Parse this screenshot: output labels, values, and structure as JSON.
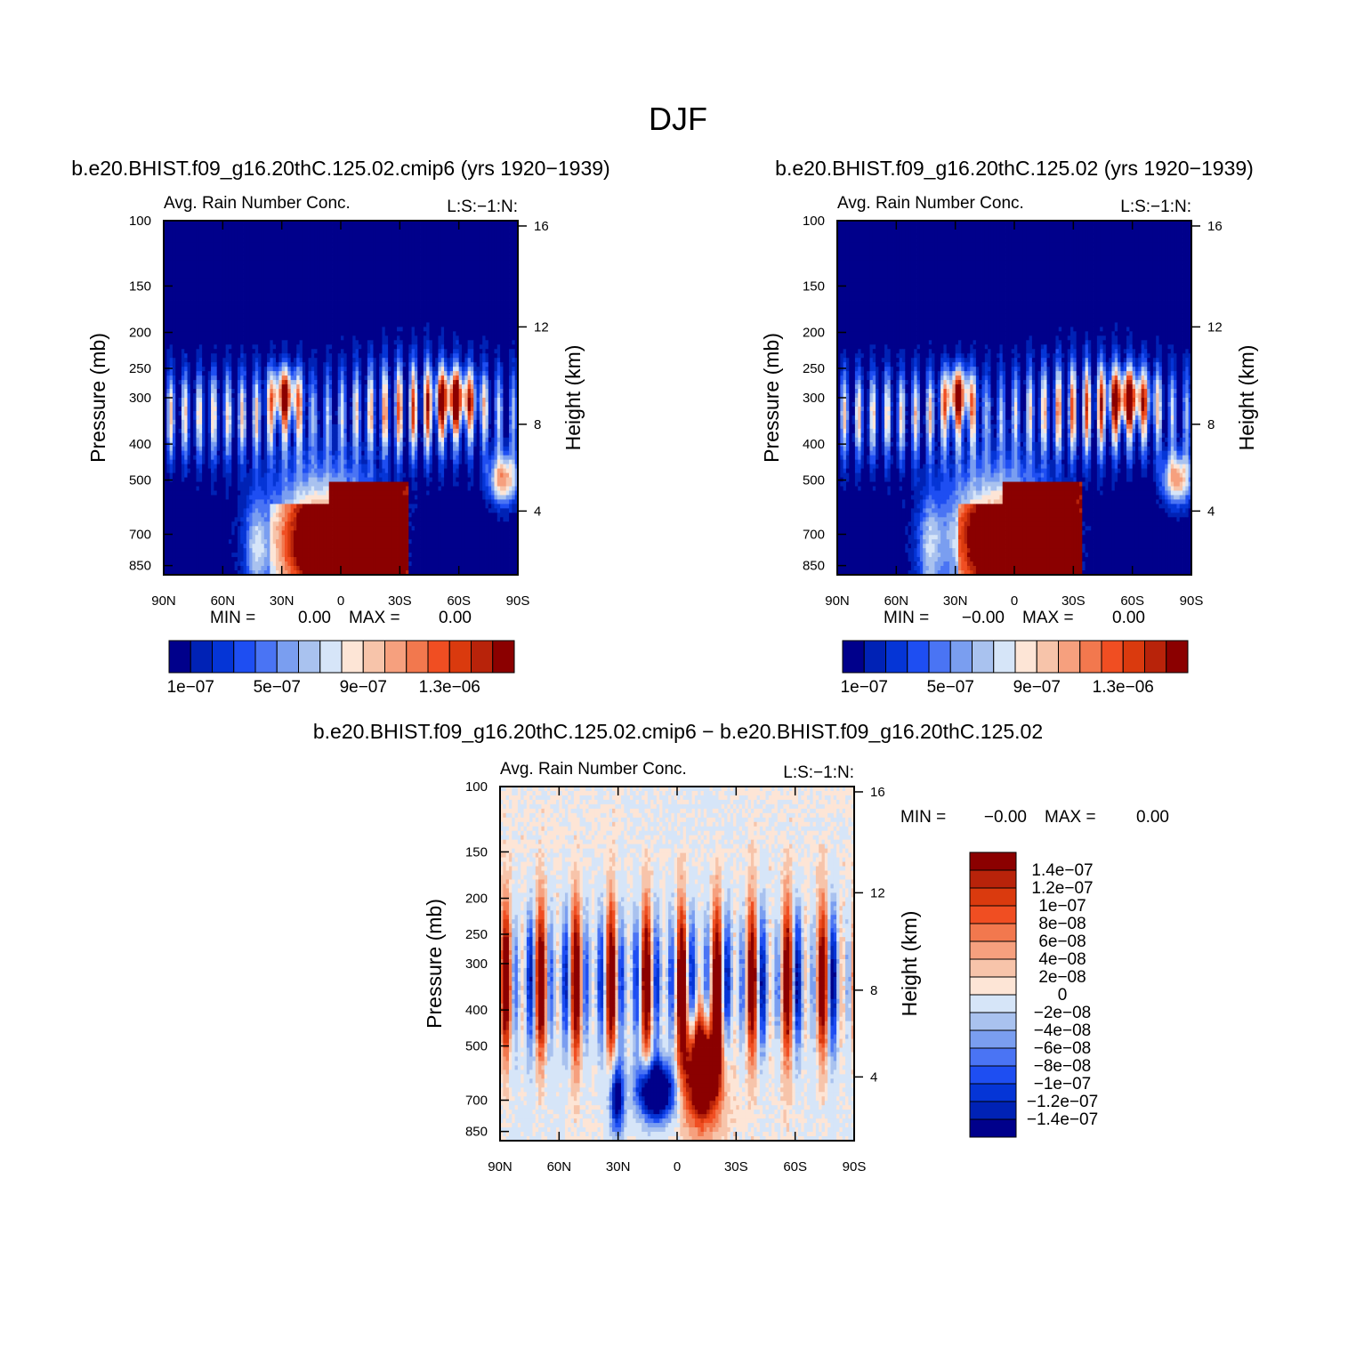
{
  "figure_title": "DJF",
  "colors": {
    "seq": [
      "#00008b",
      "#0022b5",
      "#0535d6",
      "#1e4ef2",
      "#4a74f4",
      "#7a9ef0",
      "#a9c2ef",
      "#d6e5f8",
      "#fde5d6",
      "#f7c4aa",
      "#f6a07e",
      "#f2784e",
      "#f04e22",
      "#da3a0e",
      "#b8230a",
      "#8b0000"
    ],
    "diff": [
      "#00008b",
      "#0022b5",
      "#0535d6",
      "#1e4ef2",
      "#4a74f4",
      "#7a9ef0",
      "#a9c2ef",
      "#d6e5f8",
      "#fde5d6",
      "#f7c4aa",
      "#f6a07e",
      "#f2784e",
      "#f04e22",
      "#da3a0e",
      "#b8230a",
      "#8b0000"
    ]
  },
  "chart_data": [
    {
      "type": "heatmap",
      "id": "panel-1",
      "title": "b.e20.BHIST.f09_g16.20thC.125.02.cmip6 (yrs 1920−1939)",
      "subtitle": "Avg. Rain Number Conc.",
      "units_label": "L:S:−1:N:",
      "xlabel": "",
      "ylabel": "Pressure (mb)",
      "y2label": "Height (km)",
      "x_ticks": [
        "90N",
        "60N",
        "30N",
        "0",
        "30S",
        "60S",
        "90S"
      ],
      "y_ticks": [
        "100",
        "150",
        "200",
        "250",
        "300",
        "400",
        "500",
        "700",
        "850"
      ],
      "y2_ticks": [
        "16",
        "12",
        "8",
        "4"
      ],
      "min_label": "MIN =",
      "min_value": "0.00",
      "max_label": "MAX =",
      "max_value": "0.00",
      "colorbar_labels": [
        "1e−07",
        "5e−07",
        "9e−07",
        "1.3e−06"
      ],
      "levels": [
        1e-07,
        2e-07,
        3e-07,
        4e-07,
        5e-07,
        6e-07,
        7e-07,
        8e-07,
        9e-07,
        1e-06,
        1.1e-06,
        1.2e-06,
        1.3e-06,
        1.4e-06,
        1.5e-06
      ]
    },
    {
      "type": "heatmap",
      "id": "panel-2",
      "title": "b.e20.BHIST.f09_g16.20thC.125.02 (yrs 1920−1939)",
      "subtitle": "Avg. Rain Number Conc.",
      "units_label": "L:S:−1:N:",
      "xlabel": "",
      "ylabel": "Pressure (mb)",
      "y2label": "Height (km)",
      "x_ticks": [
        "90N",
        "60N",
        "30N",
        "0",
        "30S",
        "60S",
        "90S"
      ],
      "y_ticks": [
        "100",
        "150",
        "200",
        "250",
        "300",
        "400",
        "500",
        "700",
        "850"
      ],
      "y2_ticks": [
        "16",
        "12",
        "8",
        "4"
      ],
      "min_label": "MIN =",
      "min_value": "−0.00",
      "max_label": "MAX =",
      "max_value": "0.00",
      "colorbar_labels": [
        "1e−07",
        "5e−07",
        "9e−07",
        "1.3e−06"
      ],
      "levels": [
        1e-07,
        2e-07,
        3e-07,
        4e-07,
        5e-07,
        6e-07,
        7e-07,
        8e-07,
        9e-07,
        1e-06,
        1.1e-06,
        1.2e-06,
        1.3e-06,
        1.4e-06,
        1.5e-06
      ]
    },
    {
      "type": "heatmap",
      "id": "panel-diff",
      "title": "b.e20.BHIST.f09_g16.20thC.125.02.cmip6 − b.e20.BHIST.f09_g16.20thC.125.02",
      "subtitle": "Avg. Rain Number Conc.",
      "units_label": "L:S:−1:N:",
      "xlabel": "",
      "ylabel": "Pressure (mb)",
      "y2label": "Height (km)",
      "x_ticks": [
        "90N",
        "60N",
        "30N",
        "0",
        "30S",
        "60S",
        "90S"
      ],
      "y_ticks": [
        "100",
        "150",
        "200",
        "250",
        "300",
        "400",
        "500",
        "700",
        "850"
      ],
      "y2_ticks": [
        "16",
        "12",
        "8",
        "4"
      ],
      "min_label": "MIN =",
      "min_value": "−0.00",
      "max_label": "MAX =",
      "max_value": "0.00",
      "colorbar_labels": [
        "1.4e−07",
        "1.2e−07",
        "1e−07",
        "8e−08",
        "6e−08",
        "4e−08",
        "2e−08",
        "0",
        "−2e−08",
        "−4e−08",
        "−6e−08",
        "−8e−08",
        "−1e−07",
        "−1.2e−07",
        "−1.4e−07"
      ],
      "levels": [
        -1.4e-07,
        -1.2e-07,
        -1e-07,
        -8e-08,
        -6e-08,
        -4e-08,
        -2e-08,
        0,
        2e-08,
        4e-08,
        6e-08,
        8e-08,
        1e-07,
        1.2e-07,
        1.4e-07
      ]
    }
  ]
}
